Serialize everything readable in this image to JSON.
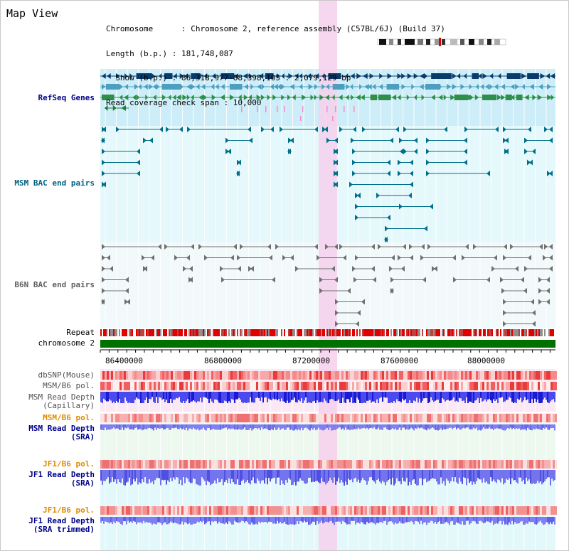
{
  "title": "Map View",
  "info": {
    "chromosome": "Chromosome      : Chromosome 2, reference assembly (C57BL/6J) (Build 37)",
    "length": "Length (b.p.) : 181,748,087",
    "show": "  Show (b.p.) : 86,318,977-88,398,105 : 2,079,129 bp",
    "coverage": "Read coverage check span : 10,000"
  },
  "tracks": {
    "refseq": "RefSeq Genes",
    "msm_bac": "MSM BAC end pairs",
    "b6n_bac": "B6N BAC end pairs",
    "repeat": "Repeat",
    "chromosome": "chromosome 2",
    "dbsnp": "dbSNP(Mouse)",
    "msm_b6_pol1": "MSM/B6 pol.",
    "msm_depth_cap": "MSM Read Depth\n(Capillary)",
    "msm_b6_pol2": "MSM/B6 pol.",
    "msm_depth_sra": "MSM Read Depth\n(SRA)",
    "jf1_b6_pol1": "JF1/B6 pol.",
    "jf1_depth_sra": "JF1 Read Depth\n(SRA)",
    "jf1_b6_pol2": "JF1/B6 pol.",
    "jf1_depth_trim": "JF1 Read Depth\n(SRA trimmed)"
  },
  "axis": {
    "ticks": [
      "86400000",
      "86800000",
      "87200000",
      "87600000",
      "88000000"
    ]
  },
  "colors": {
    "refseq_bg": "#cdeef8",
    "msm_bac_bg": "#e3f8fb",
    "highlight": "#f6d0ec",
    "chromosome_bar": "#007000",
    "label_blue": "#00008b",
    "label_teal": "#006080",
    "label_gray": "#505050",
    "label_orange": "#e08a00"
  }
}
